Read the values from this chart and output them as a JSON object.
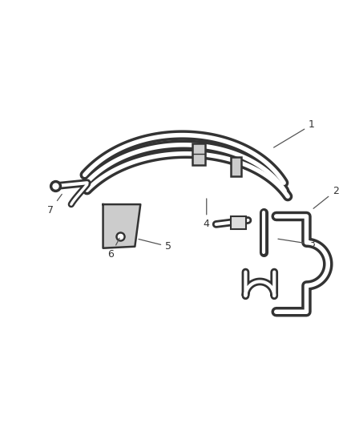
{
  "background_color": "#ffffff",
  "line_color": "#333333",
  "label_color": "#333333",
  "label_fontsize": 9,
  "figsize": [
    4.38,
    5.33
  ],
  "dpi": 100,
  "tube_lw_out": 7,
  "tube_lw_in": 3.5
}
